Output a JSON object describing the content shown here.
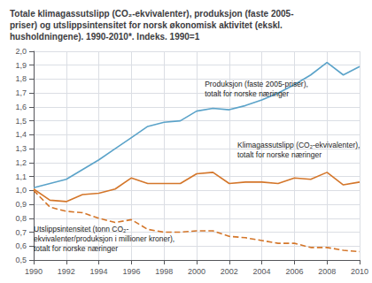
{
  "chart_data": {
    "type": "line",
    "title": "Totale klimagassutslipp (CO₂-ekvivalenter), produksjon (faste 2005-\npriser) og utslippsintensitet for norsk økonomisk aktivitet (ekskl.\nhusholdningene). 1990-2010*. Indeks. 1990=1",
    "x": [
      1990,
      1991,
      1992,
      1993,
      1994,
      1995,
      1996,
      1997,
      1998,
      1999,
      2000,
      2001,
      2002,
      2003,
      2004,
      2005,
      2006,
      2007,
      2008,
      2009,
      2010
    ],
    "series": [
      {
        "color": "#5ba3c9",
        "line_style": "solid",
        "values": [
          1.02,
          1.05,
          1.08,
          1.15,
          1.22,
          1.3,
          1.38,
          1.46,
          1.49,
          1.5,
          1.57,
          1.59,
          1.58,
          1.61,
          1.65,
          1.7,
          1.76,
          1.83,
          1.92,
          1.83,
          1.89
        ]
      },
      {
        "color": "#d4762a",
        "line_style": "solid",
        "values": [
          1.01,
          0.93,
          0.92,
          0.97,
          0.98,
          1.01,
          1.09,
          1.05,
          1.05,
          1.05,
          1.12,
          1.13,
          1.05,
          1.06,
          1.06,
          1.05,
          1.09,
          1.08,
          1.13,
          1.04,
          1.06
        ]
      },
      {
        "color": "#d4762a",
        "line_style": "dashed",
        "values": [
          1.0,
          0.88,
          0.85,
          0.84,
          0.8,
          0.77,
          0.79,
          0.72,
          0.7,
          0.7,
          0.71,
          0.71,
          0.67,
          0.66,
          0.64,
          0.62,
          0.62,
          0.59,
          0.59,
          0.57,
          0.56
        ]
      }
    ],
    "xlim": [
      1990,
      2010
    ],
    "xticks": [
      1990,
      1992,
      1994,
      1996,
      1998,
      2000,
      2002,
      2004,
      2006,
      2008,
      2010
    ],
    "ylim": [
      0.5,
      2.0
    ],
    "yticks": [
      {
        "value": 0.5,
        "label": "0,5"
      },
      {
        "value": 0.6,
        "label": "0,6"
      },
      {
        "value": 0.7,
        "label": "0,7"
      },
      {
        "value": 0.8,
        "label": "0,8"
      },
      {
        "value": 0.9,
        "label": "0,9"
      },
      {
        "value": 1.0,
        "label": "1,0"
      },
      {
        "value": 1.1,
        "label": "1,1"
      },
      {
        "value": 1.2,
        "label": "1,2"
      },
      {
        "value": 1.3,
        "label": "1,3"
      },
      {
        "value": 1.4,
        "label": "1,4"
      },
      {
        "value": 1.5,
        "label": "1,5"
      },
      {
        "value": 1.6,
        "label": "1,6"
      },
      {
        "value": 1.7,
        "label": "1,7"
      },
      {
        "value": 1.8,
        "label": "1,8"
      },
      {
        "value": 1.9,
        "label": "1,9"
      },
      {
        "value": 2.0,
        "label": "2,0"
      }
    ],
    "grid": true,
    "annotations": [
      {
        "text": "Produksjon (faste 2005-priser),\ntotalt for norske næringer",
        "x": 2000.5,
        "y": 1.66
      },
      {
        "text": "Klimagassutslipp (CO₂-ekvivalenter),\ntotalt for norske næringer",
        "x": 2002.5,
        "y": 1.22
      },
      {
        "text": "Utslippsintensitet (tonn CO₂-\nekvivalenter/produksjon i millioner kroner),\ntotalt for norske næringer",
        "x": 1990.0,
        "y": 0.76
      }
    ]
  }
}
